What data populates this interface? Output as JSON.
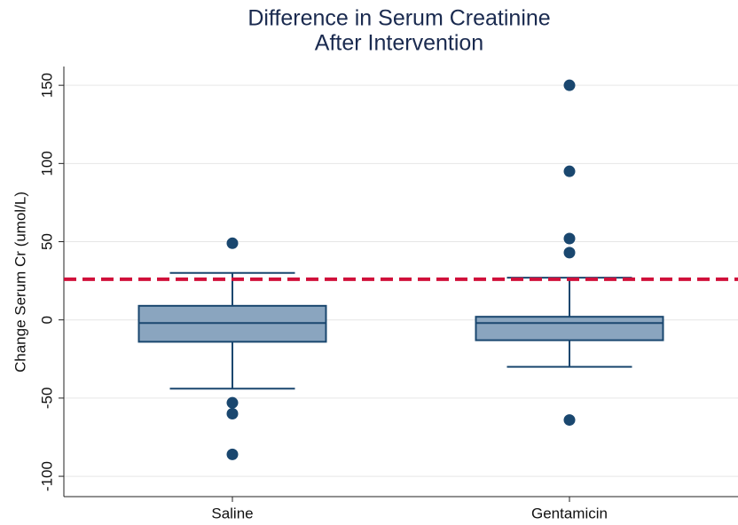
{
  "chart_data": {
    "type": "box",
    "title": [
      "Difference in Serum Creatinine",
      "After Intervention"
    ],
    "y_label": "Change Serum Cr (umol/L)",
    "categories": [
      "Saline",
      "Gentamicin"
    ],
    "boxes": [
      {
        "min": -44,
        "q1": -14,
        "median": -2,
        "q3": 9,
        "max": 30,
        "outliers": [
          49,
          -53,
          -60,
          -86
        ]
      },
      {
        "min": -30,
        "q1": -13,
        "median": -2,
        "q3": 2,
        "max": 27,
        "outliers": [
          150,
          95,
          52,
          43,
          -64
        ]
      }
    ],
    "color": "#8aa5bf",
    "edge_color": "#1a476f",
    "reference_line": {
      "value": 26,
      "color": "#d0103a"
    },
    "ylim": [
      -113,
      162
    ],
    "yticks": [
      -100,
      -50,
      0,
      50,
      100,
      150
    ],
    "grid": true
  }
}
